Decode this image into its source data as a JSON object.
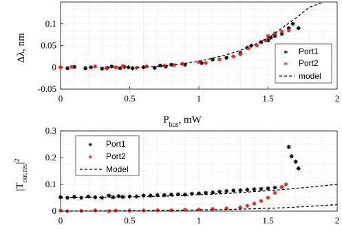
{
  "chart_data": [
    {
      "type": "scatter",
      "xlabel": "P",
      "xlabel_sub": "bus",
      "xlabel_suffix": ", mW",
      "ylabel": "Δλ, nm",
      "xlim": [
        0,
        2
      ],
      "ylim": [
        -0.05,
        0.15
      ],
      "xticks": [
        0,
        0.5,
        1,
        1.5,
        2
      ],
      "xtick_labels": [
        "0",
        "0.5",
        "1",
        "1.5",
        "2"
      ],
      "yticks": [
        -0.05,
        0,
        0.05,
        0.1
      ],
      "ytick_labels": [
        "-0.05",
        "0",
        "0.05",
        "0.1"
      ],
      "grid": true,
      "legend_position": "right",
      "legend": [
        "Port1",
        "Port2",
        "model"
      ],
      "series": [
        {
          "name": "Port1",
          "color": "#000000",
          "marker": "asterisk",
          "x": [
            0.0,
            0.05,
            0.1,
            0.18,
            0.22,
            0.3,
            0.34,
            0.37,
            0.4,
            0.43,
            0.46,
            0.49,
            0.52,
            0.6,
            0.68,
            0.72,
            0.76,
            0.8,
            0.9,
            1.02,
            1.1,
            1.2,
            1.3,
            1.35,
            1.38,
            1.45,
            1.5,
            1.52,
            1.55,
            1.6,
            1.65,
            1.68,
            1.72
          ],
          "y": [
            0.0,
            -0.002,
            0.001,
            -0.002,
            0.0,
            -0.003,
            -0.001,
            0.002,
            0.0,
            -0.002,
            0.001,
            0.0,
            -0.002,
            0.0,
            -0.001,
            0.004,
            0.002,
            0.006,
            0.006,
            0.01,
            0.018,
            0.022,
            0.033,
            0.045,
            0.05,
            0.058,
            0.062,
            0.068,
            0.072,
            0.077,
            0.09,
            0.1,
            0.09
          ]
        },
        {
          "name": "Port2",
          "color": "#e0282c",
          "marker": "asterisk",
          "x": [
            0.0,
            0.08,
            0.25,
            0.33,
            0.4,
            0.45,
            0.55,
            0.62,
            0.75,
            0.82,
            0.88,
            1.0,
            1.05,
            1.15,
            1.25,
            1.3,
            1.36,
            1.42,
            1.48,
            1.5,
            1.55,
            1.6,
            1.65
          ],
          "y": [
            0.0,
            0.001,
            0.002,
            -0.002,
            0.0,
            0.003,
            -0.001,
            0.002,
            0.004,
            0.005,
            0.008,
            0.012,
            0.01,
            0.018,
            0.025,
            0.03,
            0.044,
            0.05,
            0.062,
            0.072,
            0.078,
            0.082,
            0.085
          ]
        }
      ],
      "model": {
        "x": [
          0.55,
          0.7,
          0.8,
          0.9,
          1.0,
          1.1,
          1.2,
          1.3,
          1.4,
          1.5,
          1.55,
          1.6,
          1.7,
          1.8,
          1.9
        ],
        "y": [
          0.0,
          0.002,
          0.005,
          0.009,
          0.014,
          0.021,
          0.029,
          0.039,
          0.052,
          0.068,
          0.078,
          0.09,
          0.113,
          0.138,
          0.158
        ]
      }
    },
    {
      "type": "scatter",
      "ylabel": "|T",
      "ylabel_sub": "out,res",
      "ylabel_suffix": "|",
      "ylabel_sup": "2",
      "xlim": [
        0,
        2
      ],
      "ylim": [
        0,
        0.3
      ],
      "xticks": [
        0,
        0.5,
        1,
        1.5,
        2
      ],
      "xtick_labels": [
        "0",
        "0.5",
        "1",
        "1.5",
        "2"
      ],
      "yticks": [
        0,
        0.1,
        0.2,
        0.3
      ],
      "ytick_labels": [
        "0",
        "0.1",
        "0.2",
        "0.3"
      ],
      "grid": true,
      "legend_position": "top-left",
      "legend": [
        "Port1",
        "Port2",
        "Model"
      ],
      "series": [
        {
          "name": "Port1",
          "color": "#000000",
          "marker": "asterisk",
          "x": [
            0.0,
            0.05,
            0.1,
            0.15,
            0.2,
            0.25,
            0.3,
            0.35,
            0.38,
            0.42,
            0.45,
            0.5,
            0.55,
            0.6,
            0.65,
            0.7,
            0.75,
            0.8,
            0.85,
            0.9,
            0.95,
            1.0,
            1.05,
            1.1,
            1.15,
            1.2,
            1.25,
            1.3,
            1.35,
            1.4,
            1.45,
            1.5,
            1.55,
            1.6,
            1.65,
            1.67,
            1.7,
            1.72
          ],
          "y": [
            0.052,
            0.05,
            0.053,
            0.05,
            0.055,
            0.052,
            0.05,
            0.058,
            0.052,
            0.056,
            0.053,
            0.055,
            0.055,
            0.058,
            0.058,
            0.06,
            0.06,
            0.062,
            0.063,
            0.062,
            0.065,
            0.066,
            0.068,
            0.07,
            0.073,
            0.075,
            0.077,
            0.078,
            0.08,
            0.082,
            0.083,
            0.085,
            0.088,
            0.09,
            0.24,
            0.205,
            0.185,
            0.16
          ]
        },
        {
          "name": "Port2",
          "color": "#e0282c",
          "marker": "asterisk",
          "x": [
            0.0,
            0.05,
            0.15,
            0.25,
            0.35,
            0.4,
            0.5,
            0.6,
            0.7,
            0.8,
            0.9,
            1.0,
            1.1,
            1.2,
            1.3,
            1.35,
            1.4,
            1.45,
            1.5,
            1.55,
            1.6,
            1.63
          ],
          "y": [
            0.002,
            0.0,
            0.001,
            0.003,
            0.0,
            0.002,
            0.001,
            0.002,
            0.003,
            0.003,
            0.005,
            0.006,
            0.008,
            0.01,
            0.014,
            0.02,
            0.028,
            0.038,
            0.05,
            0.068,
            0.09,
            0.1
          ]
        }
      ],
      "models": [
        {
          "x": [
            0.0,
            0.4,
            0.8,
            1.2,
            1.6,
            2.0
          ],
          "y": [
            0.05,
            0.052,
            0.057,
            0.066,
            0.08,
            0.1
          ]
        },
        {
          "x": [
            0.0,
            0.4,
            0.8,
            1.2,
            1.6,
            2.0
          ],
          "y": [
            0.0,
            0.001,
            0.003,
            0.006,
            0.012,
            0.024
          ]
        }
      ]
    }
  ]
}
